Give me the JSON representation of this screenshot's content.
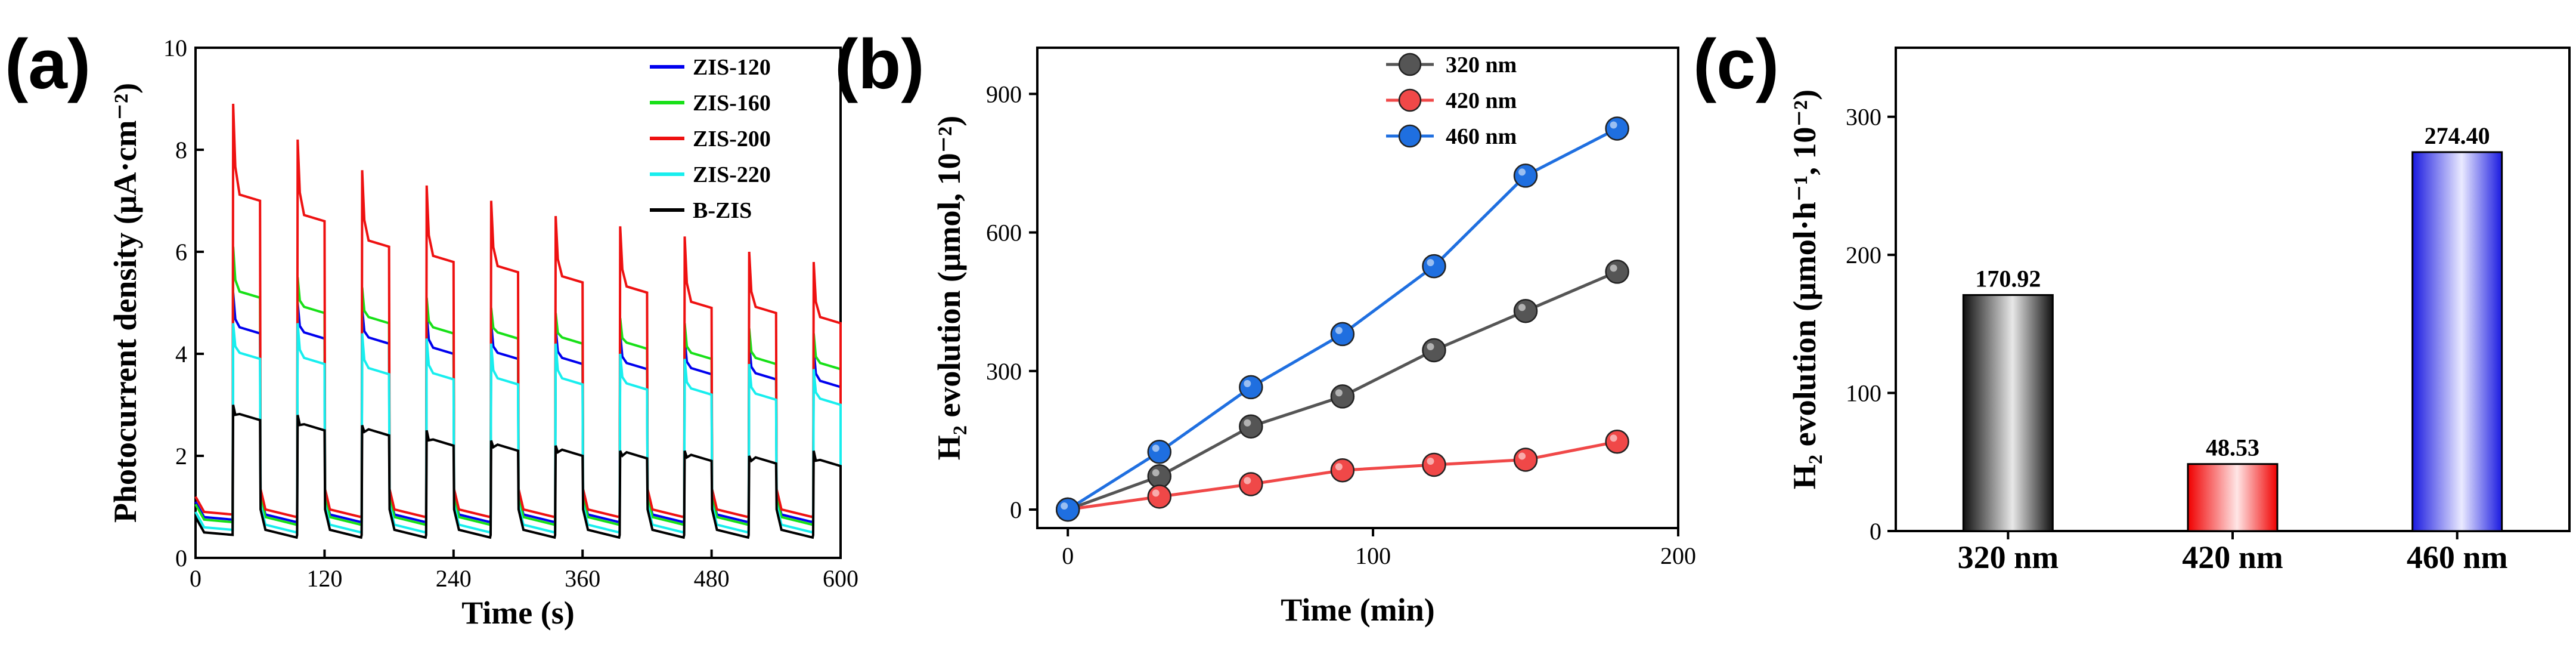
{
  "figure": {
    "panels": [
      "(a)",
      "(b)",
      "(c)"
    ]
  },
  "chart_data": [
    {
      "id": "a",
      "type": "line",
      "panel_label": "(a)",
      "xlabel": "Time (s)",
      "ylabel": "Photocurrent density (μA·cm⁻²)",
      "xlim": [
        0,
        600
      ],
      "ylim": [
        0,
        10
      ],
      "xticks": [
        0,
        120,
        240,
        360,
        480,
        600
      ],
      "yticks": [
        0,
        2,
        4,
        6,
        8,
        10
      ],
      "cycle": {
        "period_s": 60,
        "first_on_s": 35,
        "on_duration_s": 25,
        "cycles": 10
      },
      "series": [
        {
          "name": "ZIS-120",
          "color": "#0000ee",
          "dark": 0.75,
          "peaks": [
            5.2,
            5.0,
            4.9,
            4.8,
            4.6,
            4.5,
            4.4,
            4.3,
            4.2,
            4.1
          ],
          "plateaus": [
            4.4,
            4.3,
            4.2,
            4.0,
            3.9,
            3.8,
            3.7,
            3.6,
            3.5,
            3.35
          ]
        },
        {
          "name": "ZIS-160",
          "color": "#18e018",
          "dark": 0.7,
          "peaks": [
            6.1,
            5.5,
            5.3,
            5.1,
            4.9,
            4.8,
            4.7,
            4.6,
            4.5,
            4.4
          ],
          "plateaus": [
            5.1,
            4.8,
            4.6,
            4.4,
            4.3,
            4.2,
            4.1,
            3.9,
            3.8,
            3.7
          ]
        },
        {
          "name": "ZIS-200",
          "color": "#ee1111",
          "dark": 0.85,
          "peaks": [
            8.9,
            8.2,
            7.6,
            7.3,
            7.0,
            6.7,
            6.5,
            6.3,
            6.0,
            5.8
          ],
          "plateaus": [
            7.0,
            6.6,
            6.1,
            5.8,
            5.6,
            5.4,
            5.2,
            4.9,
            4.8,
            4.6
          ]
        },
        {
          "name": "ZIS-220",
          "color": "#18eeee",
          "dark": 0.55,
          "peaks": [
            4.6,
            4.6,
            4.4,
            4.3,
            4.2,
            4.2,
            4.0,
            3.9,
            3.8,
            3.7
          ],
          "plateaus": [
            3.9,
            3.8,
            3.6,
            3.5,
            3.4,
            3.4,
            3.3,
            3.2,
            3.1,
            3.0
          ]
        },
        {
          "name": "B-ZIS",
          "color": "#000000",
          "dark": 0.45,
          "peaks": [
            3.0,
            2.8,
            2.6,
            2.5,
            2.3,
            2.2,
            2.1,
            2.1,
            2.0,
            2.1
          ],
          "plateaus": [
            2.7,
            2.5,
            2.4,
            2.2,
            2.1,
            2.0,
            1.95,
            1.9,
            1.85,
            1.8
          ]
        }
      ]
    },
    {
      "id": "b",
      "type": "line",
      "panel_label": "(b)",
      "xlabel": "Time (min)",
      "ylabel": "H₂ evolution (μmol, 10⁻²)",
      "xlim": [
        -10,
        200
      ],
      "ylim": [
        -40,
        1000
      ],
      "xticks": [
        0,
        100,
        200
      ],
      "yticks": [
        0,
        300,
        600,
        900
      ],
      "x": [
        0,
        30,
        60,
        90,
        120,
        150,
        180
      ],
      "series": [
        {
          "name": "320 nm",
          "color": "#555555",
          "values": [
            0,
            72,
            180,
            245,
            345,
            430,
            515
          ]
        },
        {
          "name": "420 nm",
          "color": "#f04848",
          "values": [
            0,
            28,
            55,
            85,
            97,
            108,
            147
          ]
        },
        {
          "name": "460 nm",
          "color": "#1f6fe0",
          "values": [
            0,
            125,
            265,
            380,
            527,
            723,
            825
          ]
        }
      ]
    },
    {
      "id": "c",
      "type": "bar",
      "panel_label": "(c)",
      "xlabel": "",
      "ylabel": "H₂ evolution (μmol·h⁻¹, 10⁻²)",
      "ylim": [
        0,
        350
      ],
      "yticks": [
        0,
        100,
        200,
        300
      ],
      "categories": [
        "320 nm",
        "420 nm",
        "460 nm"
      ],
      "values": [
        170.92,
        48.53,
        274.4
      ],
      "value_labels": [
        "170.92",
        "48.53",
        "274.40"
      ],
      "colors": [
        "#222222",
        "#f01010",
        "#2020e0"
      ]
    }
  ]
}
